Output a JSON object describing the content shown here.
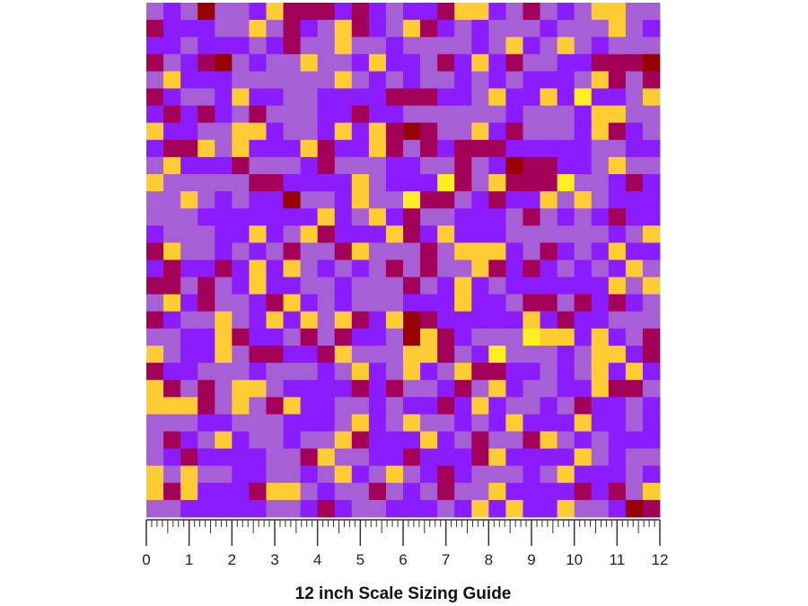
{
  "ruler": {
    "labels": [
      0,
      1,
      2,
      3,
      4,
      5,
      6,
      7,
      8,
      9,
      10,
      11,
      12
    ]
  },
  "caption": "12 inch Scale Sizing Guide"
}
